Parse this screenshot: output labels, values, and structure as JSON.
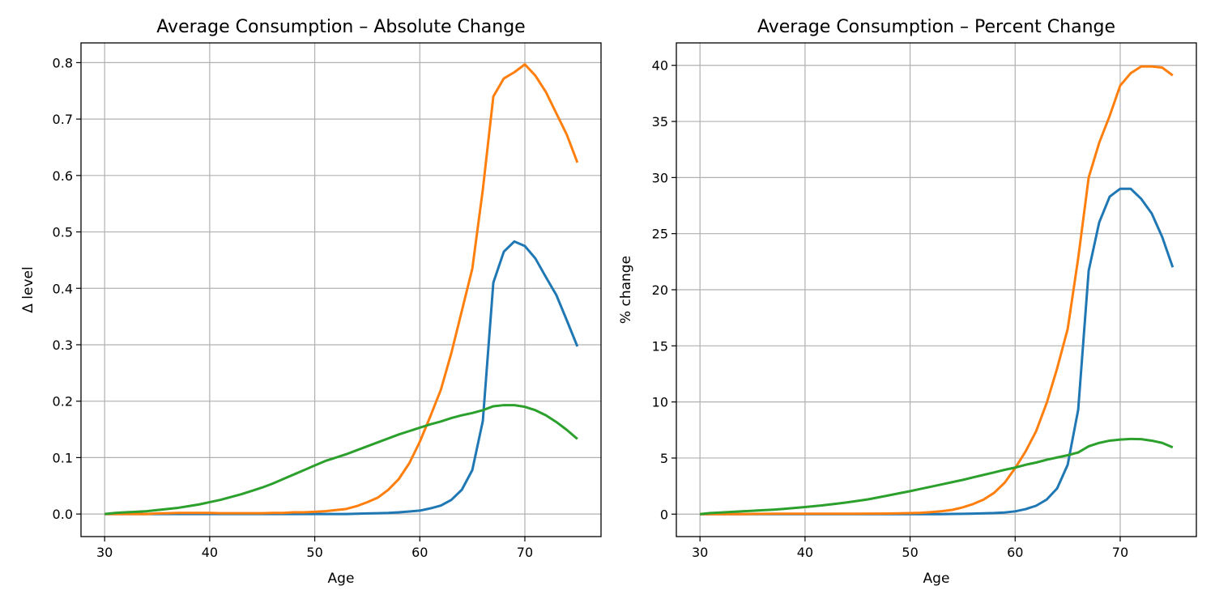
{
  "chart_data": [
    {
      "type": "line",
      "title": "Average Consumption – Absolute Change",
      "xlabel": "Age",
      "ylabel": "Δ level",
      "xlim": [
        27.75,
        77.25
      ],
      "ylim": [
        -0.04,
        0.835
      ],
      "xticks": [
        30,
        40,
        50,
        60,
        70
      ],
      "yticks": [
        0.0,
        0.1,
        0.2,
        0.3,
        0.4,
        0.5,
        0.6,
        0.7,
        0.8
      ],
      "ytick_labels": [
        "0.0",
        "0.1",
        "0.2",
        "0.3",
        "0.4",
        "0.5",
        "0.6",
        "0.7",
        "0.8"
      ],
      "grid": true,
      "x": [
        30,
        31,
        32,
        33,
        34,
        35,
        36,
        37,
        38,
        39,
        40,
        41,
        42,
        43,
        44,
        45,
        46,
        47,
        48,
        49,
        50,
        51,
        52,
        53,
        54,
        55,
        56,
        57,
        58,
        59,
        60,
        61,
        62,
        63,
        64,
        65,
        66,
        67,
        68,
        69,
        70,
        71,
        72,
        73,
        74,
        75
      ],
      "series": [
        {
          "color": "#1f77b4",
          "values": [
            0,
            0,
            0,
            0,
            0,
            0,
            0,
            0,
            0,
            0,
            0,
            0,
            0,
            0,
            0,
            0,
            0,
            0,
            0,
            0,
            0,
            0,
            0,
            0,
            0.0005,
            0.001,
            0.0015,
            0.002,
            0.003,
            0.0045,
            0.006,
            0.01,
            0.015,
            0.025,
            0.043,
            0.078,
            0.165,
            0.41,
            0.465,
            0.483,
            0.475,
            0.453,
            0.42,
            0.388,
            0.343,
            0.297
          ]
        },
        {
          "color": "#ff7f0e",
          "values": [
            0,
            0,
            0,
            0,
            0,
            0.001,
            0.0015,
            0.002,
            0.002,
            0.002,
            0.002,
            0.0015,
            0.0015,
            0.0015,
            0.0015,
            0.0015,
            0.002,
            0.002,
            0.003,
            0.003,
            0.004,
            0.005,
            0.007,
            0.009,
            0.014,
            0.021,
            0.029,
            0.043,
            0.062,
            0.09,
            0.128,
            0.173,
            0.22,
            0.285,
            0.36,
            0.435,
            0.575,
            0.74,
            0.772,
            0.783,
            0.797,
            0.777,
            0.748,
            0.71,
            0.672,
            0.623
          ]
        },
        {
          "color": "#2ca02c",
          "values": [
            0,
            0.002,
            0.003,
            0.004,
            0.005,
            0.007,
            0.009,
            0.011,
            0.014,
            0.017,
            0.021,
            0.025,
            0.03,
            0.035,
            0.041,
            0.047,
            0.054,
            0.062,
            0.07,
            0.078,
            0.086,
            0.094,
            0.1,
            0.106,
            0.113,
            0.12,
            0.127,
            0.134,
            0.141,
            0.147,
            0.153,
            0.159,
            0.164,
            0.17,
            0.175,
            0.179,
            0.184,
            0.191,
            0.193,
            0.193,
            0.19,
            0.184,
            0.175,
            0.163,
            0.149,
            0.133
          ]
        }
      ]
    },
    {
      "type": "line",
      "title": "Average Consumption – Percent Change",
      "xlabel": "Age",
      "ylabel": "% change",
      "xlim": [
        27.75,
        77.25
      ],
      "ylim": [
        -2.0,
        42.0
      ],
      "xticks": [
        30,
        40,
        50,
        60,
        70
      ],
      "yticks": [
        0,
        5,
        10,
        15,
        20,
        25,
        30,
        35,
        40
      ],
      "ytick_labels": [
        "0",
        "5",
        "10",
        "15",
        "20",
        "25",
        "30",
        "35",
        "40"
      ],
      "grid": true,
      "x": [
        30,
        31,
        32,
        33,
        34,
        35,
        36,
        37,
        38,
        39,
        40,
        41,
        42,
        43,
        44,
        45,
        46,
        47,
        48,
        49,
        50,
        51,
        52,
        53,
        54,
        55,
        56,
        57,
        58,
        59,
        60,
        61,
        62,
        63,
        64,
        65,
        66,
        67,
        68,
        69,
        70,
        71,
        72,
        73,
        74,
        75
      ],
      "series": [
        {
          "color": "#1f77b4",
          "values": [
            0,
            0,
            0,
            0,
            0,
            0,
            0,
            0,
            0,
            0,
            0,
            0,
            0,
            0,
            0,
            0,
            0,
            0,
            0,
            0,
            0,
            0,
            0,
            0,
            0.02,
            0.03,
            0.05,
            0.07,
            0.1,
            0.15,
            0.25,
            0.45,
            0.75,
            1.3,
            2.3,
            4.4,
            9.3,
            21.7,
            26.0,
            28.3,
            29.0,
            29.0,
            28.1,
            26.8,
            24.7,
            22.0
          ]
        },
        {
          "color": "#ff7f0e",
          "values": [
            0,
            0,
            0,
            0,
            0,
            0.02,
            0.03,
            0.04,
            0.04,
            0.04,
            0.04,
            0.04,
            0.04,
            0.04,
            0.04,
            0.04,
            0.05,
            0.05,
            0.06,
            0.07,
            0.09,
            0.12,
            0.18,
            0.26,
            0.38,
            0.6,
            0.9,
            1.3,
            1.9,
            2.8,
            4.1,
            5.6,
            7.4,
            9.9,
            13.0,
            16.5,
            22.8,
            30.0,
            33.1,
            35.5,
            38.2,
            39.3,
            39.9,
            39.9,
            39.8,
            39.1
          ]
        },
        {
          "color": "#2ca02c",
          "values": [
            0,
            0.1,
            0.15,
            0.2,
            0.25,
            0.3,
            0.35,
            0.4,
            0.47,
            0.55,
            0.63,
            0.72,
            0.82,
            0.93,
            1.05,
            1.18,
            1.32,
            1.5,
            1.68,
            1.87,
            2.05,
            2.25,
            2.45,
            2.65,
            2.85,
            3.05,
            3.28,
            3.5,
            3.72,
            3.95,
            4.15,
            4.4,
            4.6,
            4.85,
            5.05,
            5.25,
            5.5,
            6.05,
            6.35,
            6.55,
            6.65,
            6.7,
            6.68,
            6.55,
            6.35,
            5.95
          ]
        }
      ]
    }
  ]
}
